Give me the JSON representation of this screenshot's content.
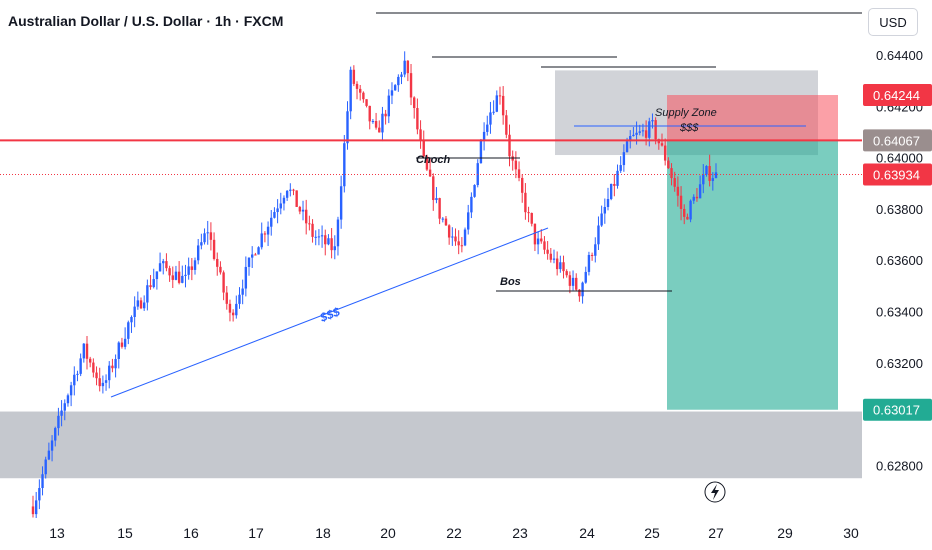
{
  "title": "Australian Dollar / U.S. Dollar · 1h · FXCM",
  "currency_button": "USD",
  "colors": {
    "up": "#2962ff",
    "down": "#f23645",
    "price_line": "#f23645",
    "zone_gray": "#b2b5be",
    "stop_zone": "#f7525f",
    "target_zone": "#22ab94",
    "trendline": "#2962ff"
  },
  "chart_data": {
    "type": "candlestick",
    "symbol": "AUDUSD",
    "timeframe": "1h",
    "y_axis": {
      "ticks": [
        0.628,
        0.632,
        0.634,
        0.636,
        0.638,
        0.64,
        0.642,
        0.644
      ],
      "tick_labels": [
        "0.62800",
        "0.63200",
        "0.63400",
        "0.63600",
        "0.63800",
        "0.64000",
        "0.64200",
        "0.64400"
      ],
      "range": [
        0.6262,
        0.6453
      ]
    },
    "x_axis": {
      "labels": [
        "13",
        "15",
        "16",
        "17",
        "18",
        "20",
        "22",
        "23",
        "24",
        "25",
        "27",
        "29",
        "30"
      ]
    },
    "price_labels": [
      {
        "value": "0.64244",
        "kind": "stop"
      },
      {
        "value": "0.64067",
        "kind": "level"
      },
      {
        "value": "0.63934",
        "kind": "last"
      },
      {
        "value": "0.63017",
        "kind": "target"
      }
    ],
    "horizontal_line": 0.64067,
    "annotations": [
      "Supply Zone",
      "$$$",
      "Choch",
      "Bos",
      "$$$"
    ],
    "zones": [
      {
        "name": "demand",
        "y": [
          0.6275,
          0.6301
        ]
      },
      {
        "name": "supply",
        "y": [
          0.6401,
          0.6434
        ]
      }
    ],
    "position": {
      "type": "short",
      "entry": 0.64067,
      "stop": 0.64244,
      "target": 0.63017
    },
    "series_close_path": [
      {
        "t": 0,
        "close": 0.6264
      },
      {
        "t": 10,
        "close": 0.6305
      },
      {
        "t": 16,
        "close": 0.6325
      },
      {
        "t": 22,
        "close": 0.631
      },
      {
        "t": 30,
        "close": 0.6335
      },
      {
        "t": 40,
        "close": 0.6358
      },
      {
        "t": 48,
        "close": 0.6352
      },
      {
        "t": 55,
        "close": 0.6372
      },
      {
        "t": 62,
        "close": 0.6338
      },
      {
        "t": 70,
        "close": 0.6365
      },
      {
        "t": 80,
        "close": 0.6389
      },
      {
        "t": 88,
        "close": 0.637
      },
      {
        "t": 95,
        "close": 0.6364
      },
      {
        "t": 100,
        "close": 0.6432
      },
      {
        "t": 108,
        "close": 0.6409
      },
      {
        "t": 117,
        "close": 0.6437
      },
      {
        "t": 123,
        "close": 0.6398
      },
      {
        "t": 128,
        "close": 0.6378
      },
      {
        "t": 135,
        "close": 0.6363
      },
      {
        "t": 142,
        "close": 0.6413
      },
      {
        "t": 147,
        "close": 0.6426
      },
      {
        "t": 150,
        "close": 0.6402
      },
      {
        "t": 158,
        "close": 0.6368
      },
      {
        "t": 165,
        "close": 0.6358
      },
      {
        "t": 172,
        "close": 0.6348
      },
      {
        "t": 180,
        "close": 0.638
      },
      {
        "t": 188,
        "close": 0.6407
      },
      {
        "t": 195,
        "close": 0.6412
      },
      {
        "t": 200,
        "close": 0.6397
      },
      {
        "t": 205,
        "close": 0.6376
      },
      {
        "t": 212,
        "close": 0.6394
      },
      {
        "t": 215,
        "close": 0.6393
      }
    ]
  }
}
